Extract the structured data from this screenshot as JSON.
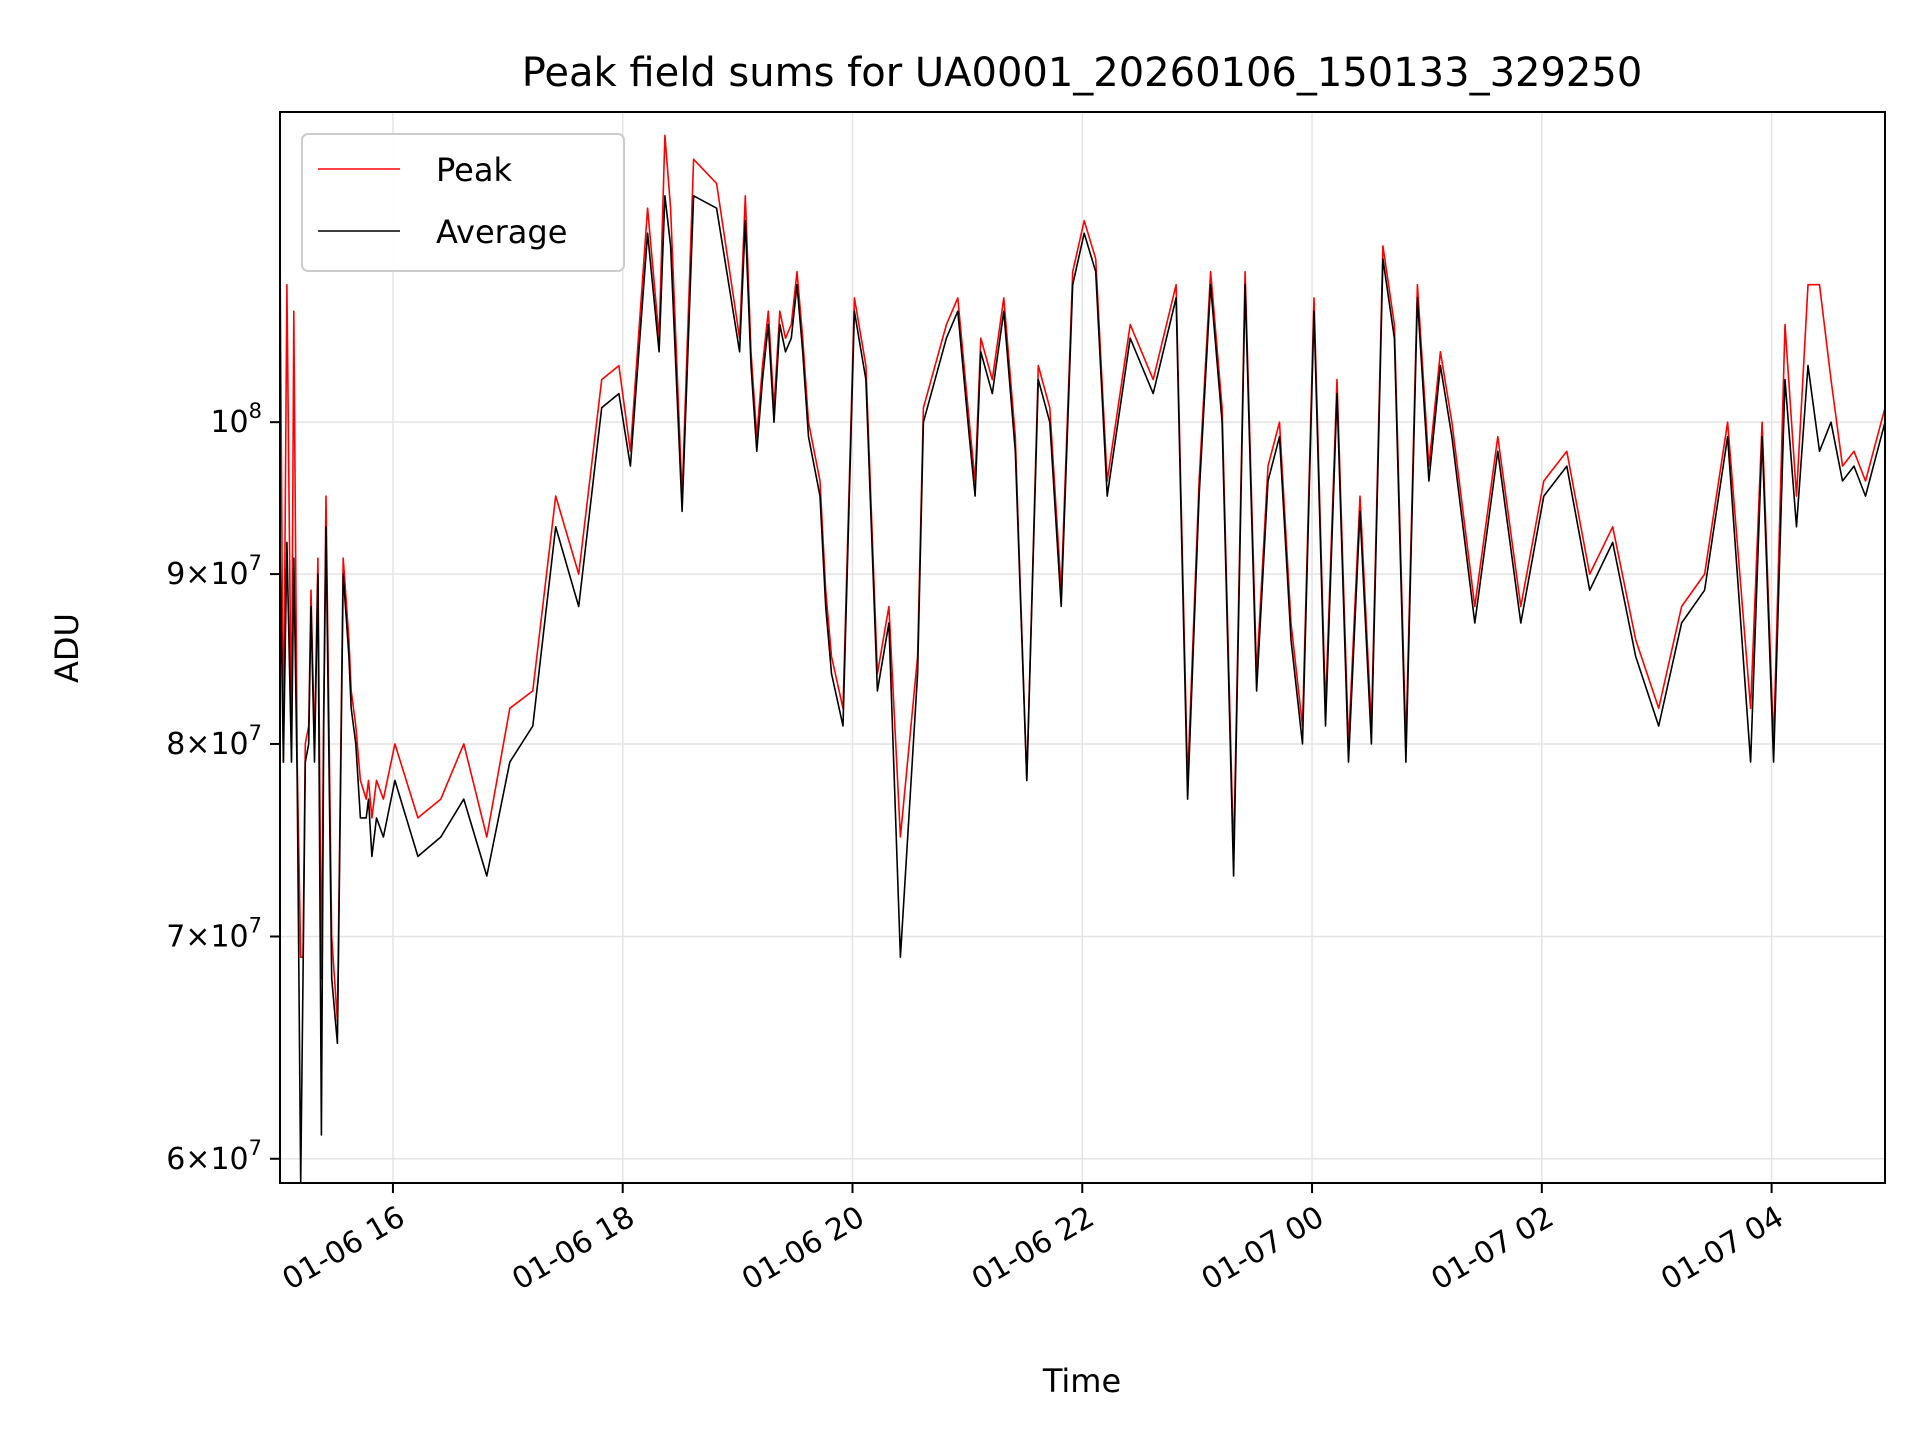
{
  "colors": {
    "peak": "#ff0000",
    "average": "#000000",
    "grid": "#e4e4e4",
    "axis": "#000000"
  },
  "chart_data": {
    "type": "line",
    "title": "Peak field sums for UA0001_20260106_150133_329250",
    "xlabel": "Time",
    "ylabel": "ADU",
    "yscale": "log",
    "ylim": [
      59000000,
      124000000
    ],
    "xlim": [
      0,
      13.97
    ],
    "x_unit": "hours since 01-06 15:01",
    "grid": true,
    "legend_position": "upper left",
    "legend": [
      "Peak",
      "Average"
    ],
    "x_ticks": [
      {
        "x": 0.983,
        "label": "01-06 16"
      },
      {
        "x": 2.983,
        "label": "01-06 18"
      },
      {
        "x": 4.983,
        "label": "01-06 20"
      },
      {
        "x": 6.983,
        "label": "01-06 22"
      },
      {
        "x": 8.983,
        "label": "01-07 00"
      },
      {
        "x": 10.983,
        "label": "01-07 02"
      },
      {
        "x": 12.983,
        "label": "01-07 04"
      }
    ],
    "y_ticks": [
      {
        "y": 60000000,
        "mant": "6",
        "exp": "7"
      },
      {
        "y": 70000000,
        "mant": "7",
        "exp": "7"
      },
      {
        "y": 80000000,
        "mant": "8",
        "exp": "7"
      },
      {
        "y": 90000000,
        "mant": "9",
        "exp": "7"
      },
      {
        "y": 100000000,
        "mant": "",
        "exp": "8"
      }
    ],
    "series": [
      {
        "name": "Peak",
        "color": "#ff0000",
        "x": [
          0,
          0.03,
          0.06,
          0.1,
          0.12,
          0.15,
          0.18,
          0.2,
          0.22,
          0.25,
          0.27,
          0.3,
          0.33,
          0.36,
          0.38,
          0.4,
          0.45,
          0.5,
          0.55,
          0.58,
          0.6,
          0.62,
          0.66,
          0.7,
          0.75,
          0.77,
          0.8,
          0.84,
          0.9,
          1.0,
          1.2,
          1.4,
          1.6,
          1.8,
          2.0,
          2.2,
          2.4,
          2.6,
          2.8,
          2.95,
          3.05,
          3.2,
          3.3,
          3.35,
          3.4,
          3.5,
          3.6,
          3.8,
          4.0,
          4.05,
          4.1,
          4.15,
          4.2,
          4.25,
          4.3,
          4.35,
          4.4,
          4.45,
          4.5,
          4.55,
          4.6,
          4.7,
          4.75,
          4.8,
          4.9,
          5.0,
          5.1,
          5.2,
          5.3,
          5.4,
          5.55,
          5.6,
          5.8,
          5.9,
          6.0,
          6.05,
          6.1,
          6.2,
          6.3,
          6.4,
          6.5,
          6.6,
          6.7,
          6.8,
          6.9,
          7.0,
          7.1,
          7.2,
          7.4,
          7.6,
          7.8,
          7.9,
          8.0,
          8.1,
          8.2,
          8.3,
          8.4,
          8.5,
          8.6,
          8.7,
          8.8,
          8.9,
          9.0,
          9.1,
          9.2,
          9.3,
          9.4,
          9.5,
          9.6,
          9.7,
          9.8,
          9.9,
          10.0,
          10.1,
          10.2,
          10.4,
          10.6,
          10.8,
          11.0,
          11.2,
          11.4,
          11.6,
          11.8,
          12.0,
          12.2,
          12.4,
          12.6,
          12.8,
          12.9,
          13.0,
          13.1,
          13.2,
          13.3,
          13.4,
          13.5,
          13.6,
          13.7,
          13.8,
          13.97
        ],
        "y": [
          113000000,
          79000000,
          110000000,
          80000000,
          108000000,
          79000000,
          69000000,
          69000000,
          80000000,
          81000000,
          89000000,
          80000000,
          91000000,
          68000000,
          82000000,
          95000000,
          70000000,
          66000000,
          91000000,
          88000000,
          86000000,
          83000000,
          81000000,
          78000000,
          77000000,
          78000000,
          76000000,
          78000000,
          77000000,
          80000000,
          76000000,
          77000000,
          80000000,
          75000000,
          82000000,
          83000000,
          95000000,
          90000000,
          103000000,
          104000000,
          98000000,
          116000000,
          106000000,
          122000000,
          116000000,
          95000000,
          120000000,
          118000000,
          106000000,
          117000000,
          105000000,
          99000000,
          104000000,
          108000000,
          101000000,
          108000000,
          106000000,
          107000000,
          111000000,
          106000000,
          100000000,
          96000000,
          89000000,
          85000000,
          82000000,
          109000000,
          104000000,
          84000000,
          88000000,
          75000000,
          85000000,
          101000000,
          107000000,
          109000000,
          100000000,
          96000000,
          106000000,
          103000000,
          109000000,
          99000000,
          78000000,
          104000000,
          101000000,
          89000000,
          111000000,
          115000000,
          112000000,
          96000000,
          107000000,
          103000000,
          110000000,
          78000000,
          96000000,
          111000000,
          101000000,
          74000000,
          111000000,
          84000000,
          97000000,
          100000000,
          87000000,
          81000000,
          109000000,
          82000000,
          103000000,
          80000000,
          95000000,
          81000000,
          113000000,
          107000000,
          80000000,
          110000000,
          97000000,
          105000000,
          100000000,
          88000000,
          99000000,
          88000000,
          96000000,
          98000000,
          90000000,
          93000000,
          86000000,
          82000000,
          88000000,
          90000000,
          100000000,
          82000000,
          100000000,
          80000000,
          107000000,
          95000000,
          110000000,
          110000000,
          103000000,
          97000000,
          98000000,
          96000000,
          101000000
        ]
      },
      {
        "name": "Average",
        "color": "#000000",
        "x": [
          0,
          0.03,
          0.06,
          0.1,
          0.12,
          0.15,
          0.18,
          0.2,
          0.22,
          0.25,
          0.27,
          0.3,
          0.33,
          0.36,
          0.38,
          0.4,
          0.45,
          0.5,
          0.55,
          0.58,
          0.6,
          0.62,
          0.66,
          0.7,
          0.75,
          0.77,
          0.8,
          0.84,
          0.9,
          1.0,
          1.2,
          1.4,
          1.6,
          1.8,
          2.0,
          2.2,
          2.4,
          2.6,
          2.8,
          2.95,
          3.05,
          3.2,
          3.3,
          3.35,
          3.4,
          3.5,
          3.6,
          3.8,
          4.0,
          4.05,
          4.1,
          4.15,
          4.2,
          4.25,
          4.3,
          4.35,
          4.4,
          4.45,
          4.5,
          4.55,
          4.6,
          4.7,
          4.75,
          4.8,
          4.9,
          5.0,
          5.1,
          5.2,
          5.3,
          5.4,
          5.55,
          5.6,
          5.8,
          5.9,
          6.0,
          6.05,
          6.1,
          6.2,
          6.3,
          6.4,
          6.5,
          6.6,
          6.7,
          6.8,
          6.9,
          7.0,
          7.1,
          7.2,
          7.4,
          7.6,
          7.8,
          7.9,
          8.0,
          8.1,
          8.2,
          8.3,
          8.4,
          8.5,
          8.6,
          8.7,
          8.8,
          8.9,
          9.0,
          9.1,
          9.2,
          9.3,
          9.4,
          9.5,
          9.6,
          9.7,
          9.8,
          9.9,
          10.0,
          10.1,
          10.2,
          10.4,
          10.6,
          10.8,
          11.0,
          11.2,
          11.4,
          11.6,
          11.8,
          12.0,
          12.2,
          12.4,
          12.6,
          12.8,
          12.9,
          13.0,
          13.1,
          13.2,
          13.3,
          13.4,
          13.5,
          13.6,
          13.7,
          13.8,
          13.97
        ],
        "y": [
          92000000,
          79000000,
          92000000,
          79000000,
          91000000,
          78000000,
          59000000,
          68000000,
          79000000,
          80000000,
          88000000,
          79000000,
          90000000,
          61000000,
          81000000,
          93000000,
          68000000,
          65000000,
          90000000,
          87000000,
          85000000,
          82000000,
          80000000,
          76000000,
          76000000,
          77000000,
          74000000,
          76000000,
          75000000,
          78000000,
          74000000,
          75000000,
          77000000,
          73000000,
          79000000,
          81000000,
          93000000,
          88000000,
          101000000,
          102000000,
          97000000,
          114000000,
          105000000,
          117000000,
          113000000,
          94000000,
          117000000,
          116000000,
          105000000,
          115000000,
          104000000,
          98000000,
          103000000,
          107000000,
          100000000,
          107000000,
          105000000,
          106000000,
          110000000,
          105000000,
          99000000,
          95000000,
          88000000,
          84000000,
          81000000,
          108000000,
          103000000,
          83000000,
          87000000,
          69000000,
          84000000,
          100000000,
          106000000,
          108000000,
          99000000,
          95000000,
          105000000,
          102000000,
          108000000,
          98000000,
          78000000,
          103000000,
          100000000,
          88000000,
          110000000,
          114000000,
          111000000,
          95000000,
          106000000,
          102000000,
          109000000,
          77000000,
          95000000,
          110000000,
          100000000,
          73000000,
          110000000,
          83000000,
          96000000,
          99000000,
          86000000,
          80000000,
          108000000,
          81000000,
          102000000,
          79000000,
          94000000,
          80000000,
          112000000,
          106000000,
          79000000,
          109000000,
          96000000,
          104000000,
          99000000,
          87000000,
          98000000,
          87000000,
          95000000,
          97000000,
          89000000,
          92000000,
          85000000,
          81000000,
          87000000,
          89000000,
          99000000,
          79000000,
          99000000,
          79000000,
          103000000,
          93000000,
          104000000,
          98000000,
          100000000,
          96000000,
          97000000,
          95000000,
          100000000
        ]
      }
    ]
  }
}
